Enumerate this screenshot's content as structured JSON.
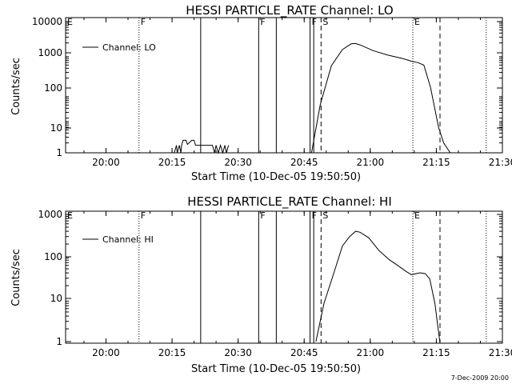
{
  "footer": {
    "timestamp": "7-Dec-2009 20:00"
  },
  "chart_data": [
    {
      "type": "line",
      "title": "HESSI PARTICLE_RATE Channel: LO",
      "xlabel": "Start Time (10-Dec-05 19:50:50)",
      "ylabel": "Counts/sec",
      "y_scale": "log",
      "ylim": [
        0.8,
        14000
      ],
      "xlim": [
        "19:50:50",
        "21:30:00"
      ],
      "x_ticks": [
        "20:00",
        "20:15",
        "20:30",
        "20:45",
        "21:00",
        "21:15",
        "21:30"
      ],
      "y_ticks": [
        "1",
        "10",
        "100",
        "1000",
        "10000"
      ],
      "legend": {
        "placement": "top-left",
        "entries": [
          "Channel: LO"
        ]
      },
      "markers": [
        {
          "label": "E",
          "time": "19:50:50",
          "style": "dotted"
        },
        {
          "label": "F",
          "time": "20:07:30",
          "style": "dotted"
        },
        {
          "label": "",
          "time": "20:21:30",
          "style": "solid"
        },
        {
          "label": "F",
          "time": "20:34:40",
          "style": "solid"
        },
        {
          "label": "",
          "time": "20:38:40",
          "style": "solid"
        },
        {
          "label": "F",
          "time": "20:46:20",
          "style": "solid"
        },
        {
          "label": "",
          "time": "20:47:10",
          "style": "solid"
        },
        {
          "label": "S",
          "time": "20:48:50",
          "style": "dashed"
        },
        {
          "label": "E",
          "time": "21:09:40",
          "style": "dotted"
        },
        {
          "label": "",
          "time": "21:15:50",
          "style": "dashed"
        },
        {
          "label": "",
          "time": "21:26:20",
          "style": "dotted"
        }
      ],
      "series": [
        {
          "name": "Channel: LO",
          "segments": [
            {
              "x": [
                "20:15:30",
                "20:16:00",
                "20:16:10",
                "20:16:40",
                "20:17:00",
                "20:17:10",
                "20:17:30",
                "20:18:10",
                "20:18:30",
                "20:19:30",
                "20:20:00",
                "20:20:20",
                "20:21:00",
                "20:22:30",
                "20:24:10",
                "20:24:40",
                "20:25:00",
                "20:25:30",
                "20:26:00",
                "20:26:30",
                "20:27:00",
                "20:27:20",
                "20:27:50"
              ],
              "y": [
                1,
                1.7,
                1,
                1.7,
                1,
                1.7,
                2.4,
                2.4,
                1.8,
                2.4,
                2.4,
                1.7,
                1.7,
                1.7,
                1.7,
                1,
                1.7,
                1,
                1.7,
                1,
                1.7,
                1,
                1.7
              ]
            },
            {
              "x": [
                "20:46:40",
                "20:48:40",
                "20:51:10",
                "20:53:40",
                "20:55:40",
                "20:56:40",
                "20:57:40",
                "21:00:40",
                "21:04:00",
                "21:07:20",
                "21:09:20",
                "21:10:50",
                "21:12:10",
                "21:13:40",
                "21:15:30",
                "21:16:40",
                "21:18:10"
              ],
              "y": [
                1,
                30,
                450,
                1400,
                2100,
                2150,
                1950,
                1300,
                950,
                750,
                620,
                560,
                470,
                100,
                6,
                2,
                0.9
              ]
            }
          ]
        }
      ]
    },
    {
      "type": "line",
      "title": "HESSI PARTICLE_RATE Channel: HI",
      "xlabel": "Start Time (10-Dec-05 19:50:50)",
      "ylabel": "Counts/sec",
      "y_scale": "log",
      "ylim": [
        0.95,
        1050
      ],
      "xlim": [
        "19:50:50",
        "21:30:00"
      ],
      "x_ticks": [
        "20:00",
        "20:15",
        "20:30",
        "20:45",
        "21:00",
        "21:15",
        "21:30"
      ],
      "y_ticks": [
        "1",
        "10",
        "100",
        "1000"
      ],
      "legend": {
        "placement": "top-left",
        "entries": [
          "Channel: HI"
        ]
      },
      "markers": [
        {
          "label": "E",
          "time": "19:50:50",
          "style": "dotted"
        },
        {
          "label": "F",
          "time": "20:07:30",
          "style": "dotted"
        },
        {
          "label": "",
          "time": "20:21:30",
          "style": "solid"
        },
        {
          "label": "F",
          "time": "20:34:40",
          "style": "solid"
        },
        {
          "label": "",
          "time": "20:38:40",
          "style": "solid"
        },
        {
          "label": "F",
          "time": "20:46:20",
          "style": "solid"
        },
        {
          "label": "",
          "time": "20:47:10",
          "style": "solid"
        },
        {
          "label": "S",
          "time": "20:48:50",
          "style": "dashed"
        },
        {
          "label": "E",
          "time": "21:09:40",
          "style": "dotted"
        },
        {
          "label": "",
          "time": "21:15:50",
          "style": "dashed"
        },
        {
          "label": "",
          "time": "21:26:20",
          "style": "dotted"
        }
      ],
      "series": [
        {
          "name": "Channel: HI",
          "segments": [
            {
              "x": [
                "20:47:40",
                "20:49:30",
                "20:51:50",
                "20:53:40",
                "20:55:20",
                "20:56:40",
                "20:57:40",
                "20:59:40",
                "21:02:00",
                "21:04:20",
                "21:06:30",
                "21:08:10",
                "21:09:20",
                "21:11:20",
                "21:12:30",
                "21:13:30",
                "21:14:40",
                "21:15:50"
              ],
              "y": [
                1,
                8,
                45,
                180,
                300,
                400,
                380,
                280,
                140,
                85,
                60,
                45,
                38,
                42,
                40,
                30,
                8,
                0.9
              ]
            }
          ]
        }
      ]
    }
  ]
}
